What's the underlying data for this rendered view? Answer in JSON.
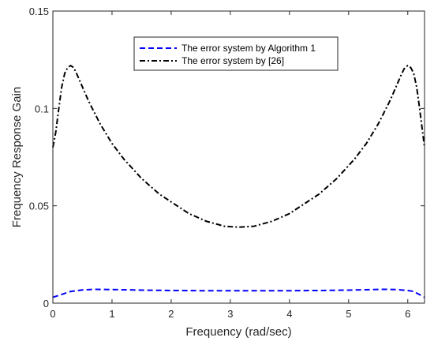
{
  "chart_data": {
    "type": "line",
    "title": "",
    "xlabel": "Frequency (rad/sec)",
    "ylabel": "Frequency Response Gain",
    "xlim": [
      0,
      6.2832
    ],
    "ylim": [
      0,
      0.15
    ],
    "xticks": [
      0,
      1,
      2,
      3,
      4,
      5,
      6
    ],
    "xtick_labels": [
      "0",
      "1",
      "2",
      "3",
      "4",
      "5",
      "6"
    ],
    "yticks": [
      0,
      0.05,
      0.1,
      0.15
    ],
    "ytick_labels": [
      "0",
      "0.05",
      "0.1",
      "0.15"
    ],
    "grid": false,
    "legend_position": "top-center",
    "series": [
      {
        "name": "The error system by Algorithm 1",
        "color": "#0000ff",
        "style": "dashed",
        "x": [
          0,
          0.15,
          0.3,
          0.5,
          0.7,
          1.0,
          1.5,
          2.0,
          2.5,
          3.0,
          3.1416,
          3.5,
          4.0,
          4.5,
          5.0,
          5.3,
          5.6,
          5.8,
          6.0,
          6.1,
          6.2832
        ],
        "y": [
          0.003,
          0.0045,
          0.006,
          0.0068,
          0.0071,
          0.007,
          0.0067,
          0.0065,
          0.0064,
          0.0064,
          0.0064,
          0.0064,
          0.0064,
          0.0065,
          0.0067,
          0.0069,
          0.0071,
          0.007,
          0.0065,
          0.006,
          0.003
        ]
      },
      {
        "name": "The error system by [26]",
        "color": "#000000",
        "style": "dashdot",
        "x": [
          0,
          0.05,
          0.1,
          0.15,
          0.2,
          0.25,
          0.3,
          0.35,
          0.4,
          0.5,
          0.6,
          0.8,
          1.0,
          1.2,
          1.5,
          1.8,
          2.0,
          2.3,
          2.6,
          2.9,
          3.1416,
          3.4,
          3.7,
          4.0,
          4.3,
          4.5,
          4.8,
          5.1,
          5.3,
          5.5,
          5.7,
          5.8,
          5.9,
          5.95,
          6.0,
          6.05,
          6.1,
          6.15,
          6.2,
          6.2832
        ],
        "y": [
          0.08,
          0.088,
          0.1,
          0.111,
          0.118,
          0.121,
          0.122,
          0.121,
          0.118,
          0.111,
          0.104,
          0.092,
          0.082,
          0.074,
          0.064,
          0.056,
          0.052,
          0.046,
          0.042,
          0.0395,
          0.039,
          0.0395,
          0.042,
          0.046,
          0.052,
          0.056,
          0.064,
          0.074,
          0.082,
          0.092,
          0.104,
          0.111,
          0.118,
          0.121,
          0.122,
          0.121,
          0.118,
          0.111,
          0.1,
          0.08
        ]
      }
    ]
  }
}
